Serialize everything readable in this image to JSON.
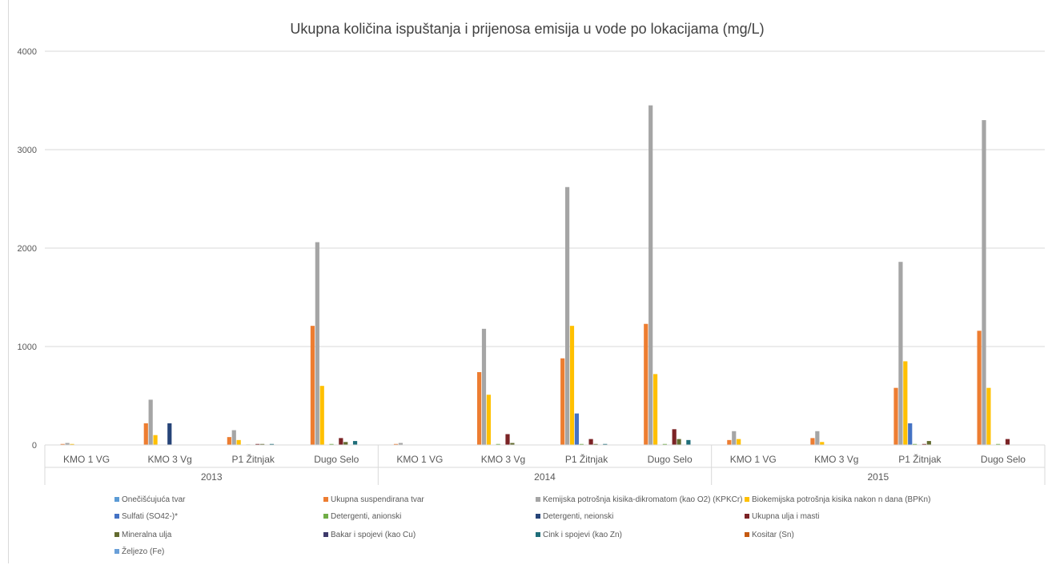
{
  "chart_data": {
    "type": "bar",
    "title": "Ukupna količina ispuštanja i prijenosa emisija u vode po lokacijama (mg/L)",
    "xlabel": "",
    "ylabel": "",
    "ylim": [
      0,
      4000
    ],
    "yticks": [
      0,
      1000,
      2000,
      3000,
      4000
    ],
    "grid": true,
    "legend_position": "bottom",
    "groups": [
      {
        "label": "2013",
        "categories": [
          "KMO 1 VG",
          "KMO 3 Vg",
          "P1 Žitnjak",
          "Dugo Selo"
        ]
      },
      {
        "label": "2014",
        "categories": [
          "KMO 1 VG",
          "KMO 3 Vg",
          "P1 Žitnjak",
          "Dugo Selo"
        ]
      },
      {
        "label": "2015",
        "categories": [
          "KMO 1 VG",
          "KMO 3 Vg",
          "P1 Žitnjak",
          "Dugo Selo"
        ]
      }
    ],
    "series": [
      {
        "name": "Onečišćujuća tvar",
        "color": "#5b9bd5",
        "values": [
          0,
          0,
          0,
          0,
          0,
          0,
          0,
          0,
          0,
          0,
          0,
          0
        ]
      },
      {
        "name": "Ukupna suspendirana tvar",
        "color": "#ed7d31",
        "values": [
          10,
          220,
          80,
          1210,
          10,
          740,
          880,
          1230,
          50,
          70,
          580,
          1160
        ]
      },
      {
        "name": "Kemijska potrošnja kisika-dikromatom (kao O2) (KPKCr)",
        "color": "#a5a5a5",
        "values": [
          20,
          460,
          150,
          2060,
          20,
          1180,
          2620,
          3450,
          140,
          140,
          1860,
          3300
        ]
      },
      {
        "name": "Biokemijska potrošnja kisika nakon n dana (BPKn)",
        "color": "#ffc000",
        "values": [
          10,
          100,
          50,
          600,
          0,
          510,
          1210,
          720,
          60,
          30,
          850,
          580
        ]
      },
      {
        "name": "Sulfati (SO42-)*",
        "color": "#4472c4",
        "values": [
          0,
          0,
          0,
          0,
          0,
          0,
          320,
          0,
          0,
          0,
          220,
          0
        ]
      },
      {
        "name": "Detergenti, anionski",
        "color": "#70ad47",
        "values": [
          0,
          0,
          5,
          10,
          0,
          10,
          10,
          10,
          0,
          0,
          10,
          10
        ]
      },
      {
        "name": "Detergenti, neionski",
        "color": "#264478",
        "values": [
          0,
          220,
          0,
          0,
          0,
          0,
          0,
          0,
          0,
          0,
          0,
          0
        ]
      },
      {
        "name": "Ukupna ulja i masti",
        "color": "#7b2325",
        "values": [
          0,
          0,
          10,
          70,
          0,
          110,
          60,
          160,
          0,
          0,
          10,
          60
        ]
      },
      {
        "name": "Mineralna ulja",
        "color": "#636b2f",
        "values": [
          0,
          0,
          10,
          30,
          0,
          20,
          10,
          60,
          0,
          0,
          40,
          0
        ]
      },
      {
        "name": "Bakar i spojevi (kao Cu)",
        "color": "#3e3a6b",
        "values": [
          0,
          0,
          0,
          0,
          0,
          0,
          0,
          0,
          0,
          0,
          0,
          0
        ]
      },
      {
        "name": "Cink i spojevi (kao Zn)",
        "color": "#1f6e7a",
        "values": [
          0,
          0,
          10,
          40,
          0,
          0,
          10,
          50,
          0,
          0,
          0,
          0
        ]
      },
      {
        "name": "Kositar (Sn)",
        "color": "#c55a11",
        "values": [
          0,
          0,
          0,
          0,
          0,
          0,
          0,
          0,
          0,
          0,
          0,
          0
        ]
      },
      {
        "name": "Željezo (Fe)",
        "color": "#6a9fd8",
        "values": [
          0,
          0,
          0,
          0,
          0,
          0,
          0,
          0,
          0,
          0,
          0,
          0
        ]
      }
    ]
  }
}
